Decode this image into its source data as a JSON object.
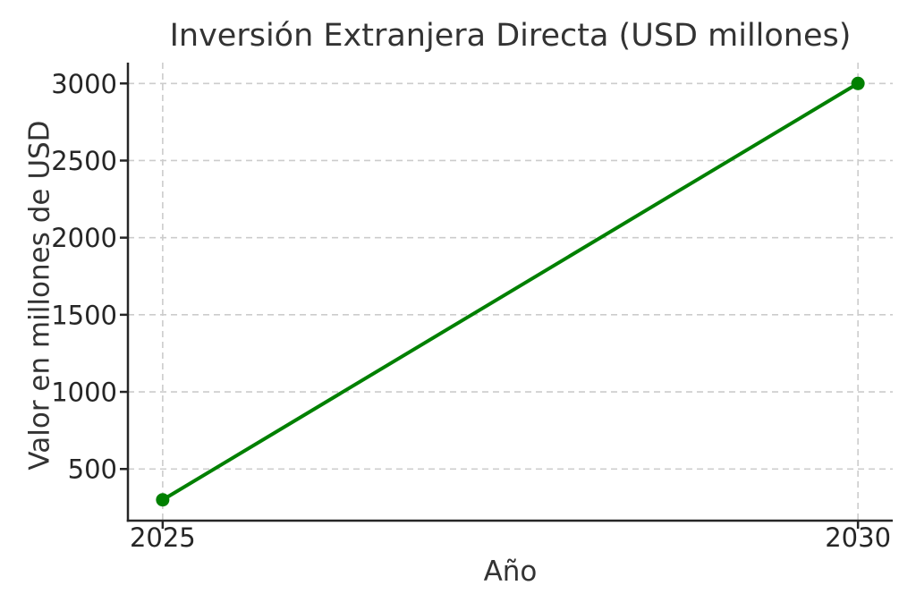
{
  "figure": {
    "title": "Inversión Extranjera Directa (USD millones)",
    "xlabel": "Año",
    "ylabel": "Valor en millones de USD"
  },
  "chart_data": {
    "type": "line",
    "title": "Inversión Extranjera Directa (USD millones)",
    "xlabel": "Año",
    "ylabel": "Valor en millones de USD",
    "x": [
      2025,
      2030
    ],
    "y": [
      300,
      3000
    ],
    "xticks": [
      2025,
      2030
    ],
    "yticks": [
      500,
      1000,
      1500,
      2000,
      2500,
      3000
    ],
    "xlim": [
      2024.75,
      2030.25
    ],
    "ylim": [
      165,
      3135
    ],
    "grid": true,
    "grid_linestyle": "dashed",
    "legend": "none",
    "marker": "circle"
  },
  "colors": {
    "line": "#008000",
    "marker": "#008000",
    "grid": "#cccccc",
    "axis": "#262626",
    "tick_text": "#262626",
    "title_text": "#333333",
    "background": "#ffffff"
  }
}
